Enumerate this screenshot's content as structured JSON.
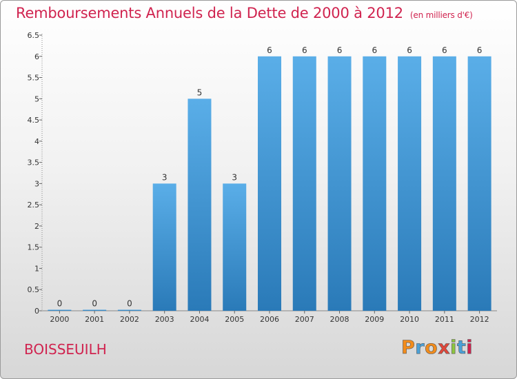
{
  "title": "Remboursements Annuels de la Dette de 2000 à 2012",
  "unit": "(en milliers d'€)",
  "commune": "BOISSEUILH",
  "logo": {
    "text": "Proxiti",
    "colors": [
      "#f28c1c",
      "#4aa1d8",
      "#f28c1c",
      "#e0473a",
      "#8dc63f",
      "#4aa1d8",
      "#d0234f"
    ]
  },
  "colors": {
    "title": "#d0234f",
    "bar_top": "#5aaee8",
    "bar_bottom": "#2a7ab8"
  },
  "chart_data": {
    "type": "bar",
    "categories": [
      "2000",
      "2001",
      "2002",
      "2003",
      "2004",
      "2005",
      "2006",
      "2007",
      "2008",
      "2009",
      "2010",
      "2011",
      "2012"
    ],
    "values": [
      0,
      0,
      0,
      3,
      5,
      3,
      6,
      6,
      6,
      6,
      6,
      6,
      6
    ],
    "data_labels": [
      "0",
      "0",
      "0",
      "3",
      "5",
      "3",
      "6",
      "6",
      "6",
      "6",
      "6",
      "6",
      "6"
    ],
    "yticks": [
      "0",
      "0.5",
      "1",
      "1.5",
      "2",
      "2.5",
      "3",
      "3.5",
      "4",
      "4.5",
      "5",
      "5.5",
      "6",
      "6.5"
    ],
    "ylim": [
      0,
      6.5
    ],
    "grid": false,
    "xlabel": "",
    "ylabel": ""
  }
}
